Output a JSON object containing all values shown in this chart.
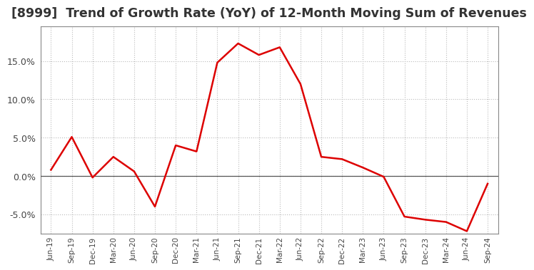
{
  "title": "[8999]  Trend of Growth Rate (YoY) of 12-Month Moving Sum of Revenues",
  "title_fontsize": 12.5,
  "title_color": "#333333",
  "line_color": "#dd0000",
  "line_width": 1.8,
  "background_color": "#ffffff",
  "plot_bg_color": "#ffffff",
  "grid_color": "#bbbbbb",
  "grid_linestyle": ":",
  "grid_linewidth": 0.8,
  "ylim": [
    -0.075,
    0.195
  ],
  "yticks": [
    -0.05,
    0.0,
    0.05,
    0.1,
    0.15
  ],
  "dates": [
    "Jun-19",
    "Sep-19",
    "Dec-19",
    "Mar-20",
    "Jun-20",
    "Sep-20",
    "Dec-20",
    "Mar-21",
    "Jun-21",
    "Sep-21",
    "Dec-21",
    "Mar-22",
    "Jun-22",
    "Sep-22",
    "Dec-22",
    "Mar-23",
    "Jun-23",
    "Sep-23",
    "Dec-23",
    "Mar-24",
    "Jun-24",
    "Sep-24"
  ],
  "values": [
    0.008,
    0.051,
    -0.002,
    0.025,
    0.006,
    -0.04,
    0.04,
    0.032,
    0.148,
    0.173,
    0.158,
    0.168,
    0.12,
    0.025,
    0.022,
    0.011,
    -0.001,
    -0.053,
    -0.057,
    -0.06,
    -0.072,
    -0.01
  ]
}
